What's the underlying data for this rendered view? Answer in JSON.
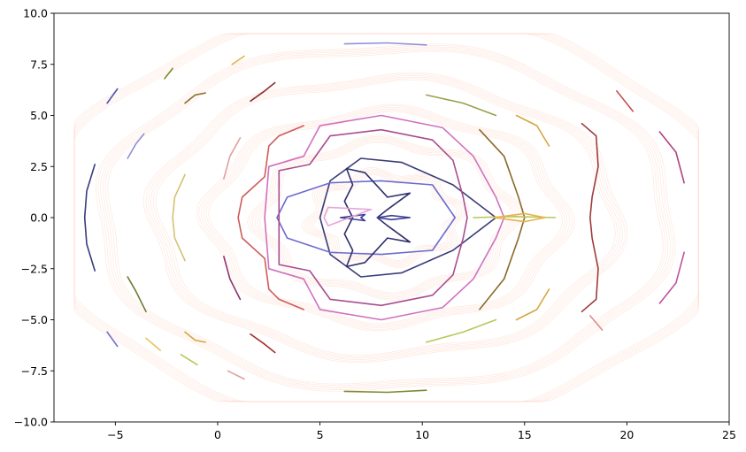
{
  "chart_data": {
    "type": "line",
    "title": "",
    "xlabel": "",
    "ylabel": "",
    "xlim": [
      -8,
      25
    ],
    "ylim": [
      -10,
      10
    ],
    "x_ticks": [
      -5,
      0,
      5,
      10,
      15,
      20,
      25
    ],
    "x_tick_labels": [
      "−5",
      "0",
      "5",
      "10",
      "15",
      "20",
      "25"
    ],
    "y_ticks": [
      -10.0,
      -7.5,
      -5.0,
      -2.5,
      0.0,
      2.5,
      5.0,
      7.5,
      10.0
    ],
    "y_tick_labels": [
      "−10.0",
      "−7.5",
      "−5.0",
      "−2.5",
      "0.0",
      "2.5",
      "5.0",
      "7.5",
      "10.0"
    ],
    "grid": false,
    "legend": "none",
    "background_field": {
      "description_color": "#fdd6c4",
      "centers_x": 8.2,
      "radii": [
        3.2,
        5.8,
        8.3,
        11.0,
        13.6,
        16.2
      ],
      "aspect_y": 0.6,
      "wobble_amplitude": 0.35,
      "wobble_frequency": 8
    },
    "series": [
      {
        "color": "#3b3b7a",
        "points": [
          [
            5.0,
            0.0
          ],
          [
            5.5,
            1.8
          ],
          [
            7.0,
            2.9
          ],
          [
            9.0,
            2.7
          ],
          [
            11.5,
            1.6
          ],
          [
            13.6,
            0.0
          ],
          [
            11.5,
            -1.6
          ],
          [
            9.0,
            -2.7
          ],
          [
            7.0,
            -2.9
          ],
          [
            5.5,
            -1.8
          ],
          [
            5.0,
            0.0
          ]
        ]
      },
      {
        "color": "#6b6bd0",
        "points": [
          [
            2.9,
            0.0
          ],
          [
            3.4,
            1.0
          ],
          [
            5.5,
            1.7
          ],
          [
            8.0,
            1.8
          ],
          [
            10.5,
            1.6
          ],
          [
            11.6,
            0.0
          ],
          [
            10.5,
            -1.6
          ],
          [
            8.0,
            -1.8
          ],
          [
            5.5,
            -1.7
          ],
          [
            3.4,
            -1.0
          ],
          [
            2.9,
            0.0
          ]
        ]
      },
      {
        "color": "#2f2f6e",
        "points": [
          [
            6.3,
            2.4
          ],
          [
            7.2,
            2.2
          ],
          [
            8.3,
            1.0
          ],
          [
            9.4,
            1.2
          ],
          [
            8.3,
            0.4
          ],
          [
            7.8,
            0.0
          ],
          [
            8.3,
            -0.4
          ],
          [
            9.4,
            -1.2
          ],
          [
            8.3,
            -1.0
          ],
          [
            7.2,
            -2.2
          ],
          [
            6.3,
            -2.4
          ],
          [
            6.6,
            -1.6
          ],
          [
            6.2,
            -0.8
          ],
          [
            6.6,
            0.0
          ],
          [
            6.2,
            0.8
          ],
          [
            6.6,
            1.6
          ],
          [
            6.3,
            2.4
          ]
        ]
      },
      {
        "color": "#3d3d96",
        "points": [
          [
            6.0,
            0.0
          ],
          [
            7.2,
            0.15
          ],
          [
            7.0,
            0.0
          ],
          [
            7.2,
            -0.15
          ],
          [
            6.0,
            0.0
          ]
        ]
      },
      {
        "color": "#3d3d96",
        "points": [
          [
            7.8,
            0.0
          ],
          [
            8.5,
            0.1
          ],
          [
            9.4,
            0.0
          ],
          [
            8.5,
            -0.1
          ],
          [
            7.8,
            0.0
          ]
        ]
      },
      {
        "color": "#e7a6d6",
        "points": [
          [
            5.2,
            0.0
          ],
          [
            5.4,
            0.5
          ],
          [
            7.5,
            0.4
          ],
          [
            5.4,
            -0.4
          ],
          [
            5.2,
            0.0
          ]
        ]
      },
      {
        "color": "#a94d8f",
        "points": [
          [
            3.0,
            0.0
          ],
          [
            3.0,
            2.3
          ],
          [
            4.5,
            2.6
          ],
          [
            5.5,
            4.0
          ],
          [
            8.0,
            4.3
          ],
          [
            10.5,
            3.8
          ],
          [
            11.5,
            2.8
          ],
          [
            12.0,
            1.0
          ],
          [
            12.2,
            0.0
          ],
          [
            12.0,
            -1.0
          ],
          [
            11.5,
            -2.8
          ],
          [
            10.5,
            -3.8
          ],
          [
            8.0,
            -4.3
          ],
          [
            5.5,
            -4.0
          ],
          [
            4.5,
            -2.6
          ],
          [
            3.0,
            -2.3
          ],
          [
            3.0,
            0.0
          ]
        ]
      },
      {
        "color": "#d070c0",
        "points": [
          [
            2.3,
            0.0
          ],
          [
            2.5,
            2.5
          ],
          [
            4.2,
            3.0
          ],
          [
            5.0,
            4.5
          ],
          [
            8.0,
            5.0
          ],
          [
            11.0,
            4.4
          ],
          [
            12.5,
            3.0
          ],
          [
            13.6,
            1.0
          ],
          [
            14.0,
            0.0
          ],
          [
            13.6,
            -1.0
          ],
          [
            12.5,
            -3.0
          ],
          [
            11.0,
            -4.4
          ],
          [
            8.0,
            -5.0
          ],
          [
            5.0,
            -4.5
          ],
          [
            4.2,
            -3.0
          ],
          [
            2.5,
            -2.5
          ],
          [
            2.3,
            0.0
          ]
        ]
      },
      {
        "color": "#d05a5a",
        "points": [
          [
            3.0,
            4.0
          ],
          [
            2.5,
            3.5
          ],
          [
            2.3,
            2.0
          ],
          [
            1.2,
            1.0
          ],
          [
            1.0,
            0.0
          ],
          [
            1.2,
            -1.0
          ],
          [
            2.3,
            -2.0
          ],
          [
            2.5,
            -3.5
          ],
          [
            3.0,
            -4.0
          ],
          [
            4.2,
            -4.5
          ]
        ]
      },
      {
        "color": "#d05a5a",
        "points": [
          [
            3.0,
            4.0
          ],
          [
            4.2,
            4.5
          ]
        ]
      },
      {
        "color": "#8a6a2a",
        "points": [
          [
            12.8,
            4.3
          ],
          [
            14.0,
            3.0
          ],
          [
            14.7,
            1.0
          ],
          [
            15.0,
            0.0
          ],
          [
            14.7,
            -1.0
          ],
          [
            14.0,
            -3.0
          ],
          [
            12.8,
            -4.5
          ]
        ]
      },
      {
        "color": "#b5c85a",
        "points": [
          [
            12.5,
            0.0
          ],
          [
            14.5,
            0.05
          ],
          [
            16.5,
            0.0
          ]
        ]
      },
      {
        "color": "#e8b24a",
        "points": [
          [
            13.5,
            0.0
          ],
          [
            15.0,
            0.2
          ],
          [
            16.0,
            0.0
          ],
          [
            15.0,
            -0.2
          ],
          [
            13.5,
            0.0
          ]
        ]
      },
      {
        "color": "#9aa04a",
        "points": [
          [
            10.2,
            6.0
          ],
          [
            12.0,
            5.6
          ],
          [
            13.6,
            5.0
          ]
        ]
      },
      {
        "color": "#d6a640",
        "points": [
          [
            14.6,
            5.0
          ],
          [
            15.6,
            4.5
          ],
          [
            16.2,
            3.5
          ]
        ]
      },
      {
        "color": "#b8c85a",
        "points": [
          [
            10.2,
            -6.1
          ],
          [
            12.0,
            -5.6
          ],
          [
            13.6,
            -5.0
          ]
        ]
      },
      {
        "color": "#d6a640",
        "points": [
          [
            14.6,
            -5.0
          ],
          [
            15.6,
            -4.5
          ],
          [
            16.2,
            -3.5
          ]
        ]
      },
      {
        "color": "#a03a3a",
        "points": [
          [
            17.8,
            4.6
          ],
          [
            18.5,
            4.0
          ],
          [
            18.6,
            2.5
          ],
          [
            18.3,
            1.0
          ],
          [
            18.2,
            0.0
          ],
          [
            18.3,
            -1.0
          ],
          [
            18.6,
            -2.5
          ],
          [
            18.5,
            -4.0
          ],
          [
            17.8,
            -4.6
          ]
        ]
      },
      {
        "color": "#e08a8a",
        "points": [
          [
            18.2,
            -4.8
          ],
          [
            18.8,
            -5.5
          ]
        ]
      },
      {
        "color": "#b04080",
        "points": [
          [
            21.6,
            4.2
          ],
          [
            22.4,
            3.2
          ],
          [
            22.8,
            1.7
          ]
        ]
      },
      {
        "color": "#c050a0",
        "points": [
          [
            21.6,
            -4.2
          ],
          [
            22.4,
            -3.2
          ],
          [
            22.8,
            -1.7
          ]
        ]
      },
      {
        "color": "#c85050",
        "points": [
          [
            19.5,
            6.2
          ],
          [
            20.3,
            5.2
          ]
        ]
      },
      {
        "color": "#9090d8",
        "points": [
          [
            6.2,
            8.5
          ],
          [
            8.3,
            8.55
          ],
          [
            10.2,
            8.45
          ]
        ]
      },
      {
        "color": "#7a8a30",
        "points": [
          [
            6.2,
            -8.5
          ],
          [
            8.3,
            -8.55
          ],
          [
            10.2,
            -8.45
          ]
        ]
      },
      {
        "color": "#8b2f2f",
        "points": [
          [
            1.6,
            5.7
          ],
          [
            2.3,
            6.2
          ],
          [
            2.8,
            6.6
          ]
        ]
      },
      {
        "color": "#a03030",
        "points": [
          [
            1.6,
            -5.7
          ],
          [
            2.3,
            -6.2
          ],
          [
            2.8,
            -6.6
          ]
        ]
      },
      {
        "color": "#8a6a2a",
        "points": [
          [
            -1.6,
            5.6
          ],
          [
            -1.1,
            6.0
          ],
          [
            -0.6,
            6.1
          ]
        ]
      },
      {
        "color": "#d6a640",
        "points": [
          [
            -1.6,
            -5.6
          ],
          [
            -1.1,
            -6.0
          ],
          [
            -0.6,
            -6.1
          ]
        ]
      },
      {
        "color": "#e7b04a",
        "points": [
          [
            0.7,
            7.5
          ],
          [
            1.3,
            7.9
          ]
        ]
      },
      {
        "color": "#e0a0a0",
        "points": [
          [
            0.5,
            -7.5
          ],
          [
            1.3,
            -7.9
          ]
        ]
      },
      {
        "color": "#e0a0a0",
        "points": [
          [
            0.3,
            1.9
          ],
          [
            0.6,
            3.0
          ],
          [
            1.1,
            3.9
          ]
        ]
      },
      {
        "color": "#8a3070",
        "points": [
          [
            0.3,
            -1.9
          ],
          [
            0.6,
            -3.0
          ],
          [
            1.1,
            -4.0
          ]
        ]
      },
      {
        "color": "#d8c070",
        "points": [
          [
            -1.6,
            2.1
          ],
          [
            -2.1,
            1.0
          ],
          [
            -2.2,
            0.0
          ],
          [
            -2.1,
            -1.0
          ],
          [
            -1.6,
            -2.1
          ]
        ]
      },
      {
        "color": "#7a8a30",
        "points": [
          [
            -2.6,
            6.8
          ],
          [
            -2.2,
            7.3
          ]
        ]
      },
      {
        "color": "#b8c85a",
        "points": [
          [
            -1.8,
            -6.7
          ],
          [
            -1.0,
            -7.2
          ]
        ]
      },
      {
        "color": "#9090d8",
        "points": [
          [
            -4.4,
            2.9
          ],
          [
            -4.0,
            3.6
          ],
          [
            -3.6,
            4.1
          ]
        ]
      },
      {
        "color": "#6b7a30",
        "points": [
          [
            -4.4,
            -2.9
          ],
          [
            -4.0,
            -3.6
          ],
          [
            -3.5,
            -4.6
          ]
        ]
      },
      {
        "color": "#3a3a80",
        "points": [
          [
            -6.0,
            2.6
          ],
          [
            -6.4,
            1.3
          ],
          [
            -6.5,
            0.0
          ],
          [
            -6.4,
            -1.3
          ],
          [
            -6.0,
            -2.6
          ]
        ]
      },
      {
        "color": "#5050b0",
        "points": [
          [
            -5.4,
            5.6
          ],
          [
            -4.9,
            6.3
          ]
        ]
      },
      {
        "color": "#7070d0",
        "points": [
          [
            -5.4,
            -5.6
          ],
          [
            -4.9,
            -6.3
          ]
        ]
      },
      {
        "color": "#e8c060",
        "points": [
          [
            -3.5,
            -5.9
          ],
          [
            -2.8,
            -6.5
          ]
        ]
      }
    ]
  }
}
